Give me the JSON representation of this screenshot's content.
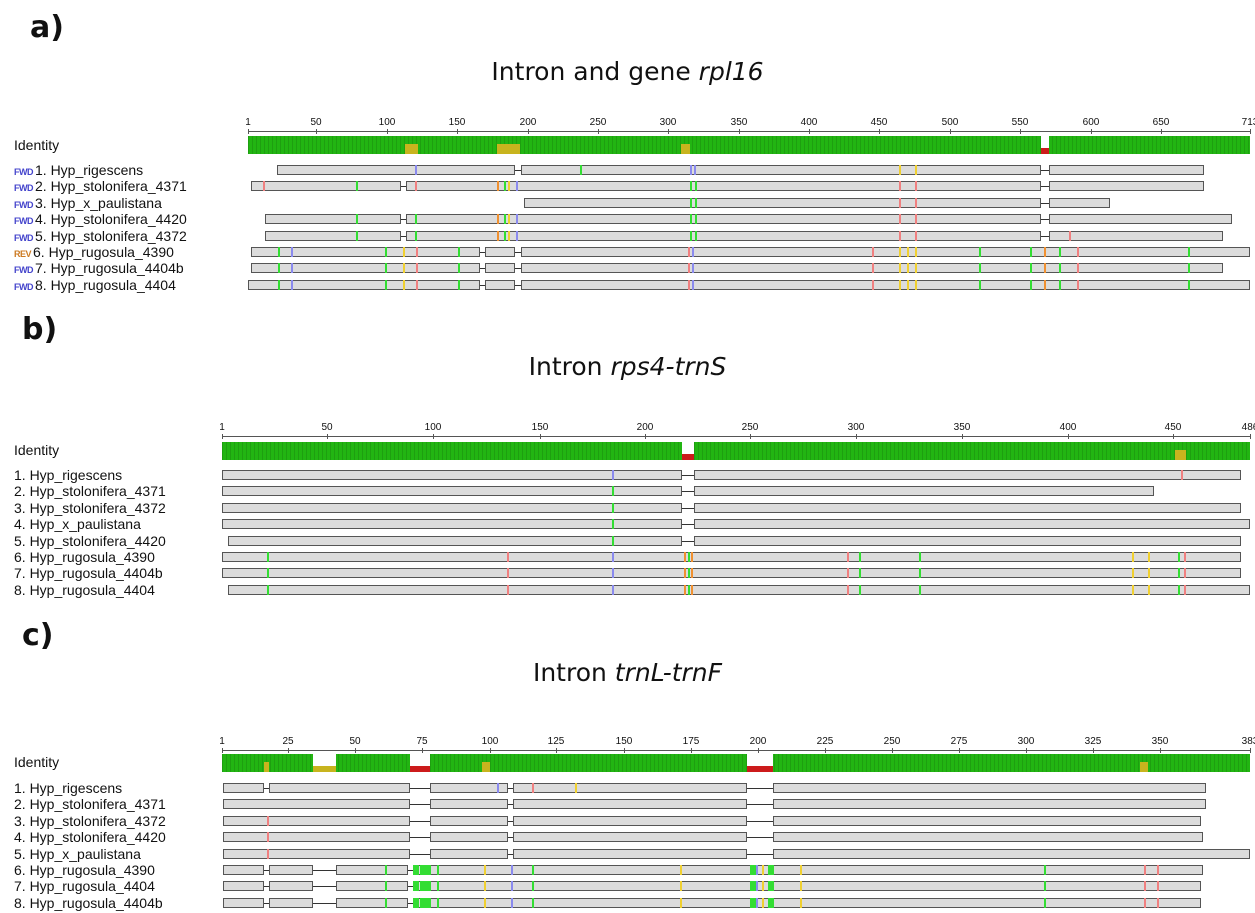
{
  "panels": [
    {
      "letter": "a)",
      "title_prefix": "Intron and gene ",
      "title_italic": "rpl16",
      "title_suffix": "",
      "identity_label": "Identity",
      "ruler_ticks": [
        "1",
        "50",
        "100",
        "150",
        "200",
        "250",
        "300",
        "350",
        "400",
        "450",
        "500",
        "550",
        "600",
        "650",
        "713"
      ],
      "rows": [
        {
          "dir": "FWD",
          "label": "1. Hyp_rigescens"
        },
        {
          "dir": "FWD",
          "label": "2. Hyp_stolonifera_4371"
        },
        {
          "dir": "FWD",
          "label": "3. Hyp_x_paulistana"
        },
        {
          "dir": "FWD",
          "label": "4. Hyp_stolonifera_4420"
        },
        {
          "dir": "FWD",
          "label": "5. Hyp_stolonifera_4372"
        },
        {
          "dir": "REV",
          "label": "6. Hyp_rugosula_4390"
        },
        {
          "dir": "FWD",
          "label": "7. Hyp_rugosula_4404b"
        },
        {
          "dir": "FWD",
          "label": "8. Hyp_rugosula_4404"
        }
      ]
    },
    {
      "letter": "b)",
      "title_prefix": "Intron ",
      "title_italic": "rps4-trnS",
      "title_suffix": "",
      "identity_label": "Identity",
      "ruler_ticks": [
        "1",
        "50",
        "100",
        "150",
        "200",
        "250",
        "300",
        "350",
        "400",
        "450",
        "486"
      ],
      "rows": [
        {
          "dir": "",
          "label": "1. Hyp_rigescens"
        },
        {
          "dir": "",
          "label": "2. Hyp_stolonifera_4371"
        },
        {
          "dir": "",
          "label": "3. Hyp_stolonifera_4372"
        },
        {
          "dir": "",
          "label": "4. Hyp_x_paulistana"
        },
        {
          "dir": "",
          "label": "5. Hyp_stolonifera_4420"
        },
        {
          "dir": "",
          "label": "6. Hyp_rugosula_4390"
        },
        {
          "dir": "",
          "label": "7. Hyp_rugosula_4404b"
        },
        {
          "dir": "",
          "label": "8. Hyp_rugosula_4404"
        }
      ]
    },
    {
      "letter": "c)",
      "title_prefix": "Intron ",
      "title_italic": "trnL-trnF",
      "title_suffix": "",
      "identity_label": "Identity",
      "ruler_ticks": [
        "1",
        "25",
        "50",
        "75",
        "100",
        "125",
        "150",
        "175",
        "200",
        "225",
        "250",
        "275",
        "300",
        "325",
        "350",
        "383"
      ],
      "rows": [
        {
          "dir": "",
          "label": "1. Hyp_rigescens"
        },
        {
          "dir": "",
          "label": "2. Hyp_stolonifera_4371"
        },
        {
          "dir": "",
          "label": "3. Hyp_stolonifera_4372"
        },
        {
          "dir": "",
          "label": "4. Hyp_stolonifera_4420"
        },
        {
          "dir": "",
          "label": "5. Hyp_x_paulistana"
        },
        {
          "dir": "",
          "label": "6. Hyp_rugosula_4390"
        },
        {
          "dir": "",
          "label": "7. Hyp_rugosula_4404"
        },
        {
          "dir": "",
          "label": "8. Hyp_rugosula_4404b"
        }
      ]
    }
  ],
  "colors": {
    "identity_high": "#22b512",
    "identity_mid": "#c8b41e",
    "identity_low": "#cc1b1b",
    "segment_fill": "#dcdcdc",
    "segment_border": "#555555",
    "snp_red": "#f08080",
    "snp_green": "#33dd33",
    "snp_blue": "#8a8aee",
    "snp_yellow": "#f0d030",
    "snp_orange": "#f09030"
  }
}
